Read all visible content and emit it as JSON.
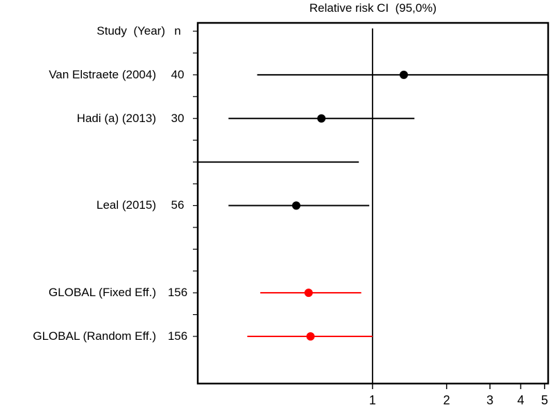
{
  "title": "Relative risk CI  (95,0%)",
  "header": {
    "study_col": "Study  (Year)",
    "n_col": "n"
  },
  "colors": {
    "black": "#000000",
    "red": "#ff0000"
  },
  "chart_data": {
    "type": "forest",
    "title": "Relative risk CI (95,0%)",
    "x_scale": "log",
    "xlim": [
      0.195,
      5.17
    ],
    "x_ticks": [
      "1",
      "2",
      "3",
      "4",
      "5"
    ],
    "x_tick_values": [
      1,
      2,
      3,
      4,
      5
    ],
    "ref_line": 1,
    "grid": false,
    "columns": [
      "Study (Year)",
      "n"
    ],
    "rows": [
      {
        "slot": 2,
        "label": "Van Elstraete (2004)",
        "n": "40",
        "est": 1.34,
        "lo": 0.34,
        "hi": 5.17,
        "hi_clipped": true,
        "color": "black"
      },
      {
        "slot": 4,
        "label": "Hadi (a) (2013)",
        "n": "30",
        "est": 0.62,
        "lo": 0.26,
        "hi": 1.48,
        "color": "black"
      },
      {
        "slot": 6,
        "label": "",
        "n": "",
        "est": null,
        "lo": 0.195,
        "hi": 0.88,
        "lo_clipped": true,
        "color": "black"
      },
      {
        "slot": 8,
        "label": "Leal (2015)",
        "n": "56",
        "est": 0.49,
        "lo": 0.26,
        "hi": 0.97,
        "color": "black"
      },
      {
        "slot": 12,
        "label": "GLOBAL (Fixed Eff.)",
        "n": "156",
        "est": 0.55,
        "lo": 0.35,
        "hi": 0.9,
        "color": "red"
      },
      {
        "slot": 14,
        "label": "GLOBAL (Random Eff.)",
        "n": "156",
        "est": 0.56,
        "lo": 0.31,
        "hi": 1.0,
        "color": "red"
      }
    ]
  }
}
